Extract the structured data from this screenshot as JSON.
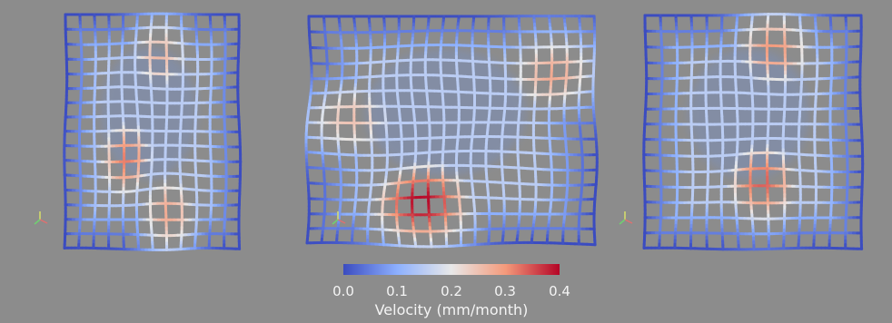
{
  "colorbar": {
    "title": "Velocity (mm/month)",
    "ticks": [
      "0.0",
      "0.1",
      "0.2",
      "0.3",
      "0.4"
    ],
    "min": 0.0,
    "max": 0.4,
    "colors": {
      "low": "#3b4cc0",
      "mid": "#e8e8e8",
      "high": "#b40426"
    }
  },
  "panels": [
    {
      "view": "front",
      "hotspots": [
        {
          "u": 0.35,
          "v": 0.62,
          "level": 0.32
        },
        {
          "u": 0.55,
          "v": 0.18,
          "level": 0.26
        },
        {
          "u": 0.6,
          "v": 0.85,
          "level": 0.28
        }
      ]
    },
    {
      "view": "top",
      "hotspots": [
        {
          "u": 0.4,
          "v": 0.82,
          "level": 0.4
        },
        {
          "u": 0.85,
          "v": 0.25,
          "level": 0.28
        },
        {
          "u": 0.15,
          "v": 0.45,
          "level": 0.25
        }
      ]
    },
    {
      "view": "side",
      "hotspots": [
        {
          "u": 0.55,
          "v": 0.72,
          "level": 0.34
        },
        {
          "u": 0.6,
          "v": 0.15,
          "level": 0.3
        }
      ]
    }
  ],
  "axes_gizmo_icon": "xyz-axes-icon",
  "background_color": "#8c8c8c"
}
